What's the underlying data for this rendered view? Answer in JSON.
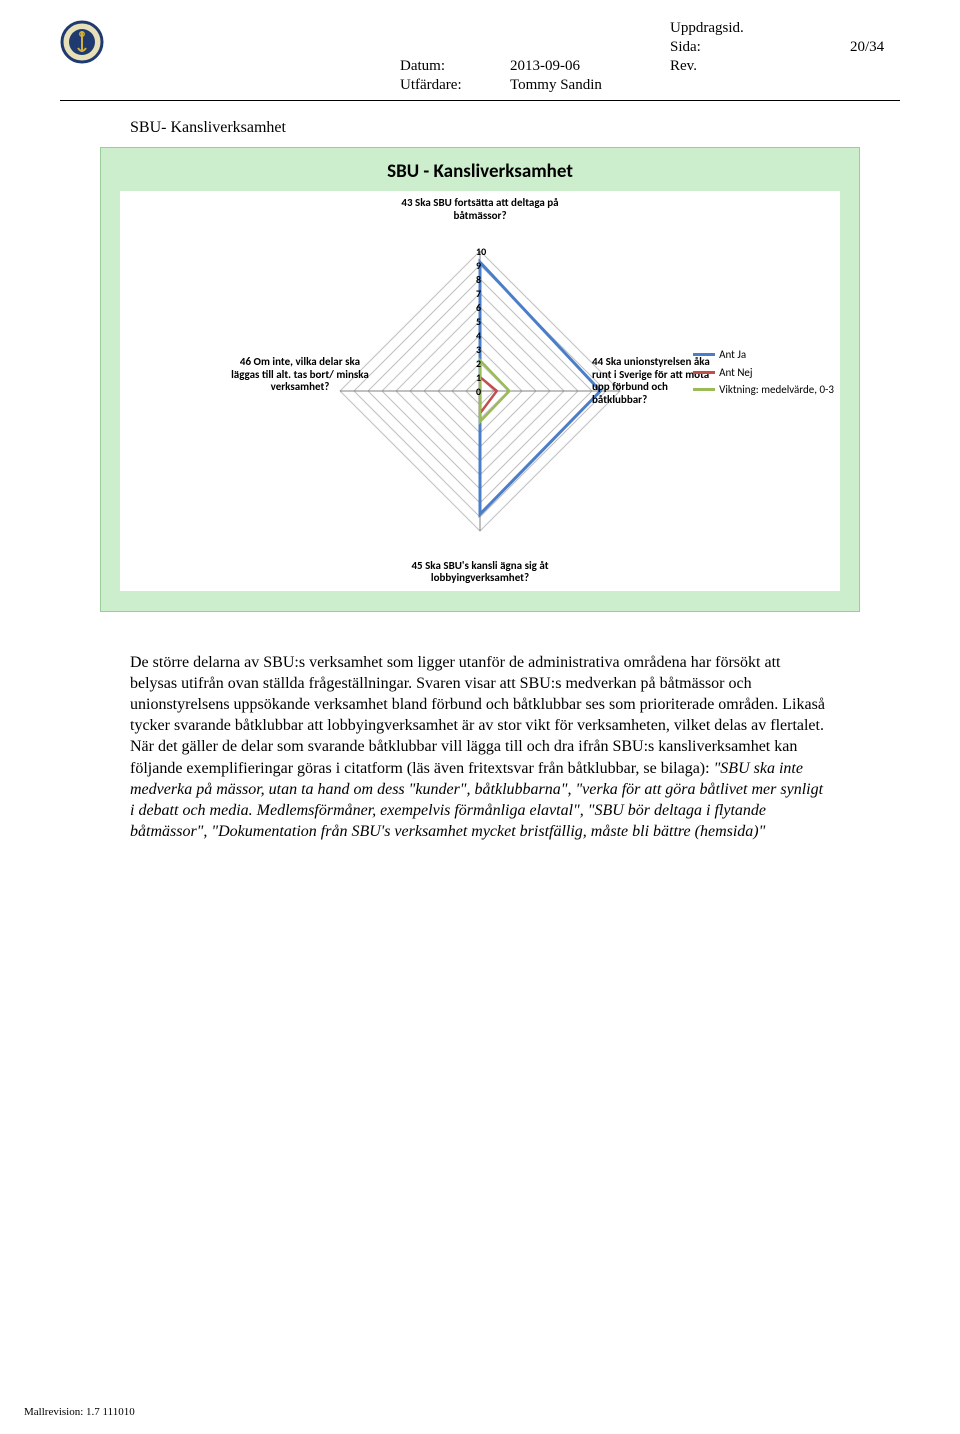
{
  "header": {
    "datum_label": "Datum:",
    "datum_value": "2013-09-06",
    "utfardare_label": "Utfärdare:",
    "utfardare_value": "Tommy Sandin",
    "uppdragsid_label": "Uppdragsid.",
    "sida_label": "Sida:",
    "sida_value": "20/34",
    "rev_label": "Rev."
  },
  "section_title": "SBU- Kansliverksamhet",
  "chart": {
    "type": "radar",
    "title": "SBU - Kansliverksamhet",
    "background_color": "#cceecc",
    "plot_background": "#ffffff",
    "axes": [
      {
        "label": "43 Ska SBU fortsätta att deltaga på båtmässor?",
        "pos": "top"
      },
      {
        "label": "44 Ska unionstyrelsen åka runt i Sverige för att möta upp förbund och båtklubbar?",
        "pos": "right"
      },
      {
        "label": "45 Ska SBU's kansli ägna sig åt lobbyingverksamhet?",
        "pos": "bottom"
      },
      {
        "label": "46 Om inte, vilka delar ska läggas till alt. tas bort/ minska verksamhet?",
        "pos": "left"
      }
    ],
    "scale_max": 10,
    "scale_ticks": [
      10,
      9,
      8,
      7,
      6,
      5,
      4,
      3,
      2,
      1,
      0
    ],
    "series": [
      {
        "name": "Ant Ja",
        "color": "#4a7ec8",
        "values": [
          9.2,
          8.6,
          8.8,
          0.0
        ],
        "line_width": 3
      },
      {
        "name": "Ant Nej",
        "color": "#c0504d",
        "values": [
          1.0,
          1.2,
          1.6,
          0.0
        ],
        "line_width": 2.5
      },
      {
        "name": "Viktning: medelvärde, 0-3",
        "color": "#9bbb59",
        "values": [
          2.2,
          2.1,
          2.2,
          0.0
        ],
        "line_width": 2.5
      }
    ],
    "grid_color": "#bfbfbf",
    "axis_color": "#808080"
  },
  "body_paragraph_plain": "De större delarna av SBU:s verksamhet som ligger utanför de administrativa områdena har försökt att belysas utifrån ovan ställda frågeställningar. Svaren visar att SBU:s medverkan på båtmässor och unionstyrelsens uppsökande verksamhet bland förbund och båtklubbar ses som prioriterade områden. Likaså tycker svarande båtklubbar att lobbyingverksamhet är av stor vikt för verksamheten, vilket delas av flertalet. När det gäller de delar som svarande båtklubbar vill lägga till och dra ifrån SBU:s kansliverksamhet kan följande exemplifieringar göras i citatform (läs även fritextsvar från båtklubbar, se bilaga): ",
  "body_paragraph_italic": "\"SBU ska inte medverka på mässor, utan ta hand om dess \"kunder\", båtklubbarna\", \"verka för att göra båtlivet mer synligt i debatt och media. Medlemsförmåner, exempelvis förmånliga elavtal\", \"SBU bör deltaga i flytande båtmässor\", \"Dokumentation från SBU's verksamhet mycket bristfällig, måste bli bättre (hemsida)\"",
  "footer": "Mallrevision: 1.7 111010"
}
